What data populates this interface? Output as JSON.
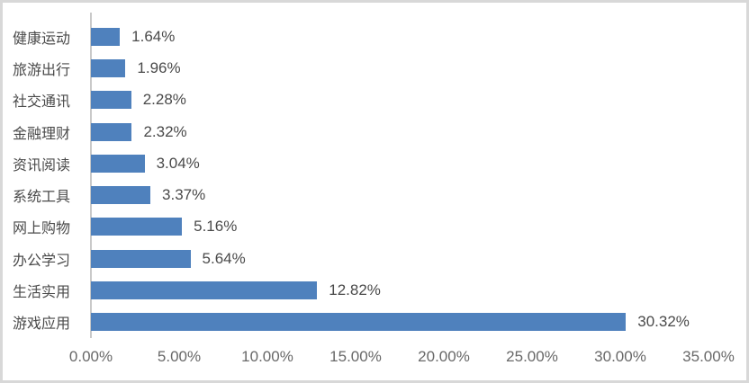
{
  "chart_data": {
    "type": "bar",
    "orientation": "horizontal",
    "title": "",
    "xlabel": "",
    "ylabel": "",
    "grid": false,
    "legend": "none",
    "categories": [
      "健康运动",
      "旅游出行",
      "社交通讯",
      "金融理财",
      "资讯阅读",
      "系统工具",
      "网上购物",
      "办公学习",
      "生活实用",
      "游戏应用"
    ],
    "values": [
      1.64,
      1.96,
      2.28,
      2.32,
      3.04,
      3.37,
      5.16,
      5.64,
      12.82,
      30.32
    ],
    "value_labels": [
      "1.64%",
      "1.96%",
      "2.28%",
      "2.32%",
      "3.04%",
      "3.37%",
      "5.16%",
      "5.64%",
      "12.82%",
      "30.32%"
    ],
    "x_ticks": [
      "0.00%",
      "5.00%",
      "10.00%",
      "15.00%",
      "20.00%",
      "25.00%",
      "30.00%",
      "35.00%"
    ],
    "xlim": [
      0,
      35
    ]
  },
  "colors": {
    "bar": "#4f81bd",
    "axis_line": "#c9c9c9",
    "category_text": "#4a4a4a",
    "value_text": "#4a4a4a",
    "tick_text": "#686868",
    "frame_border": "#d8d8d8",
    "background": "#ffffff"
  }
}
